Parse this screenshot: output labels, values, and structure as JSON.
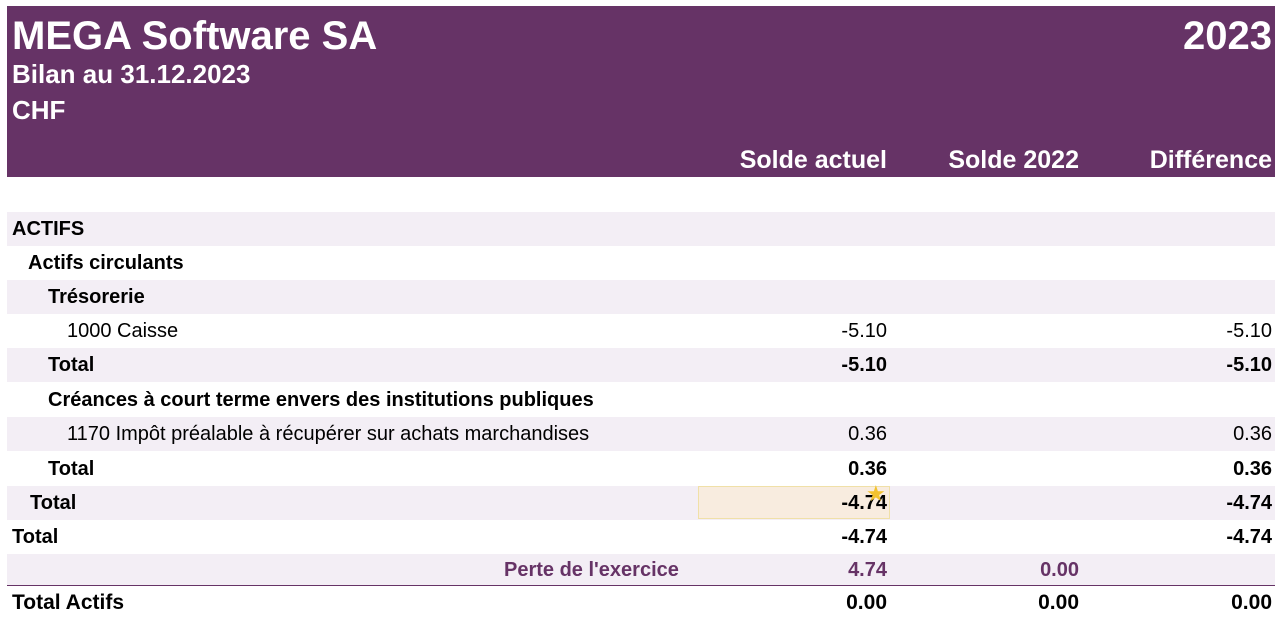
{
  "header": {
    "company": "MEGA Software SA",
    "year": "2023",
    "subtitle": "Bilan au 31.12.2023",
    "currency": "CHF",
    "columns": [
      "Solde actuel",
      "Solde 2022",
      "Différence"
    ]
  },
  "rows": [
    {
      "label": "ACTIFS",
      "v1": "",
      "v2": "",
      "v3": ""
    },
    {
      "label": "Actifs circulants",
      "v1": "",
      "v2": "",
      "v3": ""
    },
    {
      "label": "Trésorerie",
      "v1": "",
      "v2": "",
      "v3": ""
    },
    {
      "label": "1000 Caisse",
      "v1": "-5.10",
      "v2": "",
      "v3": "-5.10"
    },
    {
      "label": "Total",
      "v1": "-5.10",
      "v2": "",
      "v3": "-5.10"
    },
    {
      "label": "Créances à court terme envers des institutions publiques",
      "v1": "",
      "v2": "",
      "v3": ""
    },
    {
      "label": "1170 Impôt préalable à récupérer sur achats marchandises",
      "v1": "0.36",
      "v2": "",
      "v3": "0.36"
    },
    {
      "label": "Total",
      "v1": "0.36",
      "v2": "",
      "v3": "0.36"
    },
    {
      "label": "Total",
      "v1": "-4.74",
      "v2": "",
      "v3": "-4.74"
    },
    {
      "label": "Total",
      "v1": "-4.74",
      "v2": "",
      "v3": "-4.74"
    },
    {
      "label": "Perte de l'exercice",
      "v1": "4.74",
      "v2": "0.00",
      "v3": ""
    },
    {
      "label": "Total Actifs",
      "v1": "0.00",
      "v2": "0.00",
      "v3": "0.00"
    }
  ],
  "colors": {
    "header_bg": "#663366",
    "row_shade": "#f3eef5",
    "highlight": "#f8ecdf"
  },
  "icons": {
    "highlight_marker": "star-icon"
  }
}
